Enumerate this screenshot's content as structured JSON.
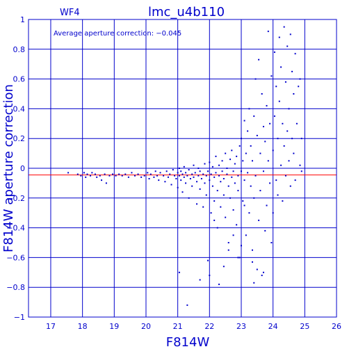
{
  "chart_data": {
    "type": "scatter",
    "title": "lmc_u4b110",
    "chip_label": "WF4",
    "annotation": "Average aperture correction: −0.045",
    "xlabel": "F814W",
    "ylabel": "F814W aperture correction",
    "xlim": [
      16.3,
      26.0
    ],
    "ylim": [
      -1.0,
      1.0
    ],
    "xticks": [
      17,
      18,
      19,
      20,
      21,
      22,
      23,
      24,
      25,
      26
    ],
    "xtick_labels": [
      "17",
      "18",
      "19",
      "20",
      "21",
      "22",
      "23",
      "24",
      "25",
      "26"
    ],
    "yticks": [
      -1.0,
      -0.8,
      -0.6,
      -0.4,
      -0.2,
      0.0,
      0.2,
      0.4,
      0.6,
      0.8,
      1.0
    ],
    "ytick_labels": [
      "−1",
      "−0.8",
      "−0.6",
      "−0.4",
      "−0.2",
      "0",
      "0.2",
      "0.4",
      "0.6",
      "0.8",
      "1"
    ],
    "grid": true,
    "reference_lines": [
      {
        "y": 0.0,
        "color": "#0000cc"
      },
      {
        "y": -0.045,
        "color": "#ff0000"
      }
    ],
    "colors": {
      "axes": "#0000cc",
      "points": "#0000cc",
      "average_line": "#ff0000",
      "background": "#ffffff"
    },
    "series": [
      {
        "values": [
          [
            17.55,
            -0.03
          ],
          [
            17.85,
            -0.04
          ],
          [
            17.95,
            -0.05
          ],
          [
            18.05,
            -0.03
          ],
          [
            18.1,
            -0.06
          ],
          [
            18.15,
            -0.04
          ],
          [
            18.25,
            -0.05
          ],
          [
            18.3,
            -0.03
          ],
          [
            18.4,
            -0.04
          ],
          [
            18.45,
            -0.06
          ],
          [
            18.55,
            -0.05
          ],
          [
            18.6,
            -0.08
          ],
          [
            18.7,
            -0.04
          ],
          [
            18.75,
            -0.1
          ],
          [
            18.85,
            -0.05
          ],
          [
            18.95,
            -0.04
          ],
          [
            19.05,
            -0.05
          ],
          [
            19.15,
            -0.04
          ],
          [
            19.25,
            -0.05
          ],
          [
            19.35,
            -0.04
          ],
          [
            19.45,
            -0.06
          ],
          [
            19.55,
            -0.03
          ],
          [
            19.65,
            -0.05
          ],
          [
            19.75,
            -0.04
          ],
          [
            19.85,
            -0.06
          ],
          [
            19.95,
            -0.05
          ],
          [
            20.05,
            -0.03
          ],
          [
            20.1,
            -0.07
          ],
          [
            20.15,
            -0.04
          ],
          [
            20.25,
            -0.06
          ],
          [
            20.3,
            -0.02
          ],
          [
            20.35,
            -0.05
          ],
          [
            20.4,
            -0.08
          ],
          [
            20.45,
            -0.03
          ],
          [
            20.55,
            -0.05
          ],
          [
            20.6,
            -0.09
          ],
          [
            20.65,
            -0.02
          ],
          [
            20.7,
            -0.06
          ],
          [
            20.75,
            -0.04
          ],
          [
            20.8,
            -0.11
          ],
          [
            20.85,
            -0.01
          ],
          [
            20.9,
            -0.05
          ],
          [
            20.95,
            -0.07
          ],
          [
            21.0,
            -0.03
          ],
          [
            21.0,
            -0.13
          ],
          [
            21.05,
            -0.05
          ],
          [
            21.05,
            0.0
          ],
          [
            21.1,
            -0.08
          ],
          [
            21.1,
            -0.02
          ],
          [
            21.15,
            -0.16
          ],
          [
            21.15,
            -0.04
          ],
          [
            21.2,
            -0.06
          ],
          [
            21.2,
            0.01
          ],
          [
            21.25,
            -0.1
          ],
          [
            21.25,
            -0.03
          ],
          [
            21.3,
            -0.05
          ],
          [
            21.35,
            -0.2
          ],
          [
            21.35,
            -0.01
          ],
          [
            21.4,
            -0.07
          ],
          [
            21.45,
            -0.04
          ],
          [
            21.45,
            -0.12
          ],
          [
            21.5,
            0.02
          ],
          [
            21.5,
            -0.06
          ],
          [
            21.55,
            -0.03
          ],
          [
            21.6,
            -0.09
          ],
          [
            21.6,
            -0.24
          ],
          [
            21.65,
            -0.05
          ],
          [
            21.65,
            0.0
          ],
          [
            21.7,
            -0.14
          ],
          [
            21.7,
            -0.02
          ],
          [
            21.75,
            -0.07
          ],
          [
            21.8,
            -0.04
          ],
          [
            21.8,
            -0.26
          ],
          [
            21.85,
            0.03
          ],
          [
            21.85,
            -0.1
          ],
          [
            21.9,
            -0.05
          ],
          [
            21.9,
            -0.18
          ],
          [
            21.95,
            -0.02
          ],
          [
            21.95,
            -0.62
          ],
          [
            22.0,
            -0.08
          ],
          [
            22.0,
            0.04
          ],
          [
            22.05,
            -0.3
          ],
          [
            22.05,
            -0.04
          ],
          [
            22.1,
            -0.12
          ],
          [
            22.1,
            0.01
          ],
          [
            22.15,
            -0.06
          ],
          [
            22.15,
            -0.22
          ],
          [
            22.2,
            0.08
          ],
          [
            22.2,
            -0.03
          ],
          [
            22.25,
            -0.15
          ],
          [
            22.25,
            -0.4
          ],
          [
            22.3,
            -0.05
          ],
          [
            22.3,
            0.02
          ],
          [
            22.35,
            -0.09
          ],
          [
            22.35,
            -0.26
          ],
          [
            22.4,
            0.05
          ],
          [
            22.4,
            -0.02
          ],
          [
            22.45,
            -0.18
          ],
          [
            22.45,
            -0.07
          ],
          [
            22.5,
            0.1
          ],
          [
            22.5,
            -0.33
          ],
          [
            22.55,
            -0.04
          ],
          [
            22.55,
            0.0
          ],
          [
            22.6,
            -0.12
          ],
          [
            22.6,
            -0.5
          ],
          [
            22.65,
            0.06
          ],
          [
            22.65,
            -0.2
          ],
          [
            22.7,
            -0.06
          ],
          [
            22.7,
            0.12
          ],
          [
            22.75,
            -0.02
          ],
          [
            22.75,
            -0.28
          ],
          [
            22.8,
            0.03
          ],
          [
            22.8,
            -0.1
          ],
          [
            22.85,
            -0.38
          ],
          [
            22.85,
            0.08
          ],
          [
            22.9,
            -0.05
          ],
          [
            22.9,
            -0.15
          ],
          [
            22.95,
            0.15
          ],
          [
            22.95,
            -0.6
          ],
          [
            23.0,
            -0.02
          ],
          [
            23.0,
            0.2
          ],
          [
            23.05,
            -0.22
          ],
          [
            23.05,
            0.05
          ],
          [
            23.1,
            -0.08
          ],
          [
            23.1,
            0.32
          ],
          [
            23.15,
            -0.45
          ],
          [
            23.15,
            0.1
          ],
          [
            23.2,
            -0.03
          ],
          [
            23.2,
            0.25
          ],
          [
            23.25,
            -0.3
          ],
          [
            23.25,
            0.4
          ],
          [
            23.3,
            -0.12
          ],
          [
            23.3,
            0.15
          ],
          [
            23.35,
            -0.55
          ],
          [
            23.35,
            0.05
          ],
          [
            23.4,
            0.35
          ],
          [
            23.4,
            -0.2
          ],
          [
            23.45,
            0.6
          ],
          [
            23.45,
            -0.05
          ],
          [
            23.5,
            0.22
          ],
          [
            23.5,
            -0.68
          ],
          [
            23.55,
            0.73
          ],
          [
            23.55,
            -0.35
          ],
          [
            23.6,
            0.1
          ],
          [
            23.6,
            -0.15
          ],
          [
            23.65,
            0.5
          ],
          [
            23.65,
            -0.72
          ],
          [
            23.7,
            0.28
          ],
          [
            23.7,
            -0.02
          ],
          [
            23.75,
            -0.42
          ],
          [
            23.75,
            0.18
          ],
          [
            23.8,
            0.42
          ],
          [
            23.8,
            -0.25
          ],
          [
            23.85,
            0.92
          ],
          [
            23.85,
            0.05
          ],
          [
            23.9,
            -0.1
          ],
          [
            23.9,
            0.3
          ],
          [
            23.95,
            0.62
          ],
          [
            23.95,
            -0.5
          ],
          [
            24.0,
            0.12
          ],
          [
            24.0,
            -0.3
          ],
          [
            24.05,
            0.78
          ],
          [
            24.05,
            0.35
          ],
          [
            24.1,
            -0.08
          ],
          [
            24.1,
            0.55
          ],
          [
            24.15,
            0.2
          ],
          [
            24.15,
            -0.18
          ],
          [
            24.2,
            0.88
          ],
          [
            24.2,
            0.45
          ],
          [
            24.25,
            0.02
          ],
          [
            24.25,
            0.68
          ],
          [
            24.3,
            -0.22
          ],
          [
            24.3,
            0.3
          ],
          [
            24.35,
            0.95
          ],
          [
            24.35,
            0.15
          ],
          [
            24.4,
            0.58
          ],
          [
            24.4,
            -0.05
          ],
          [
            24.45,
            0.82
          ],
          [
            24.45,
            0.25
          ],
          [
            24.5,
            0.4
          ],
          [
            24.5,
            0.05
          ],
          [
            24.55,
            0.9
          ],
          [
            24.55,
            -0.12
          ],
          [
            24.6,
            0.65
          ],
          [
            24.6,
            0.2
          ],
          [
            24.65,
            0.5
          ],
          [
            24.65,
            0.1
          ],
          [
            24.7,
            0.77
          ],
          [
            24.7,
            -0.08
          ],
          [
            24.75,
            0.3
          ],
          [
            24.8,
            0.55
          ],
          [
            24.85,
            0.02
          ],
          [
            24.85,
            0.6
          ],
          [
            24.9,
            -0.02
          ],
          [
            24.9,
            0.2
          ],
          [
            22.0,
            -0.72
          ],
          [
            22.3,
            -0.78
          ],
          [
            22.45,
            -0.66
          ],
          [
            21.05,
            -0.7
          ],
          [
            21.3,
            -0.92
          ],
          [
            21.7,
            -0.75
          ],
          [
            23.35,
            -0.63
          ],
          [
            23.4,
            -0.77
          ],
          [
            22.9,
            -0.6
          ],
          [
            23.0,
            -0.52
          ],
          [
            23.7,
            -0.7
          ],
          [
            22.6,
            -0.55
          ],
          [
            23.1,
            -0.25
          ],
          [
            22.75,
            -0.45
          ],
          [
            22.15,
            -0.35
          ]
        ]
      }
    ]
  }
}
